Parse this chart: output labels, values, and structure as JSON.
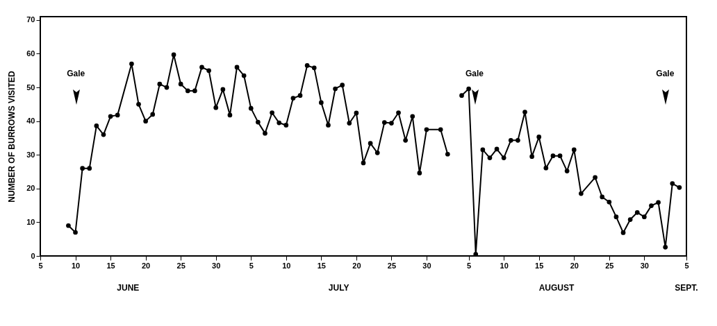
{
  "chart_data": {
    "type": "line",
    "ylabel": "NUMBER OF BURROWS VISITED",
    "x": [
      "--06-09",
      "--06-10",
      "--06-11",
      "--06-12",
      "--06-13",
      "--06-14",
      "--06-15",
      "--06-16",
      "--06-18",
      "--06-19",
      "--06-20",
      "--06-21",
      "--06-22",
      "--06-23",
      "--06-24",
      "--06-25",
      "--06-26",
      "--06-27",
      "--06-28",
      "--06-29",
      "--06-30",
      "--07-01",
      "--07-02",
      "--07-03",
      "--07-04",
      "--07-05",
      "--07-06",
      "--07-07",
      "--07-08",
      "--07-09",
      "--07-10",
      "--07-11",
      "--07-12",
      "--07-13",
      "--07-14",
      "--07-15",
      "--07-16",
      "--07-17",
      "--07-18",
      "--07-19",
      "--07-20",
      "--07-21",
      "--07-22",
      "--07-23",
      "--07-24",
      "--07-25",
      "--07-26",
      "--07-27",
      "--07-28",
      "--07-29",
      "--07-30",
      "--08-01",
      "--08-02",
      "--08-03",
      "--08-04",
      "--08-05",
      "--08-06",
      "--08-07",
      "--08-08",
      "--08-09",
      "--08-10",
      "--08-11",
      "--08-12",
      "--08-13",
      "--08-14",
      "--08-15",
      "--08-16",
      "--08-17",
      "--08-18",
      "--08-19",
      "--08-20",
      "--08-21",
      "--08-23",
      "--08-24",
      "--08-25",
      "--08-26",
      "--08-27",
      "--08-28",
      "--08-29",
      "--08-30",
      "--08-31",
      "--09-01",
      "--09-02",
      "--09-03",
      "--09-04"
    ],
    "series": [
      {
        "color": "#000000",
        "values": [
          9,
          7,
          26,
          26,
          38.6,
          36,
          41.4,
          41.8,
          57,
          45,
          40,
          42,
          51,
          50,
          59.7,
          51,
          49,
          49,
          56,
          55,
          44,
          49.4,
          41.8,
          56,
          53.5,
          43.8,
          39.7,
          36.4,
          42.5,
          39.5,
          38.8,
          46.8,
          47.6,
          56.5,
          55.8,
          45.5,
          38.8,
          49.6,
          50.7,
          39.4,
          42.4,
          27.6,
          33.4,
          30.6,
          39.6,
          39.4,
          42.5,
          34.3,
          41.4,
          24.6,
          37.5,
          37.5,
          30.2,
          null,
          47.6,
          49.6,
          0.5,
          31.5,
          29.1,
          31.7,
          29.1,
          34.3,
          34.3,
          42.7,
          29.5,
          35.3,
          26.1,
          29.7,
          29.7,
          25.2,
          31.5,
          18.5,
          23.3,
          17.5,
          16,
          11.6,
          6.9,
          10.8,
          12.9,
          11.6,
          14.9,
          15.9,
          2.6,
          21.5,
          20.3
        ]
      }
    ],
    "xlim": [
      "--06-05",
      "--09-05"
    ],
    "ylim": [
      0,
      71
    ],
    "xticks": [
      {
        "value": "--06-05",
        "label": "5"
      },
      {
        "value": "--06-10",
        "label": "10"
      },
      {
        "value": "--06-15",
        "label": "15"
      },
      {
        "value": "--06-20",
        "label": "20"
      },
      {
        "value": "--06-25",
        "label": "25"
      },
      {
        "value": "--06-30",
        "label": "30"
      },
      {
        "value": "--07-05",
        "label": "5"
      },
      {
        "value": "--07-10",
        "label": "10"
      },
      {
        "value": "--07-15",
        "label": "15"
      },
      {
        "value": "--07-20",
        "label": "20"
      },
      {
        "value": "--07-25",
        "label": "25"
      },
      {
        "value": "--07-30",
        "label": "30"
      },
      {
        "value": "--08-05",
        "label": "5"
      },
      {
        "value": "--08-10",
        "label": "10"
      },
      {
        "value": "--08-15",
        "label": "15"
      },
      {
        "value": "--08-20",
        "label": "20"
      },
      {
        "value": "--08-25",
        "label": "25"
      },
      {
        "value": "--08-30",
        "label": "30"
      },
      {
        "value": "--09-05",
        "label": "5"
      }
    ],
    "yticks": [
      0,
      10,
      20,
      30,
      40,
      50,
      60,
      70
    ],
    "annotations": [
      "Gale",
      "Gale",
      "Gale",
      "JUNE",
      "JULY",
      "AUGUST",
      "SEPT."
    ],
    "grid": false,
    "marker": "circle",
    "line_style": "solid"
  }
}
